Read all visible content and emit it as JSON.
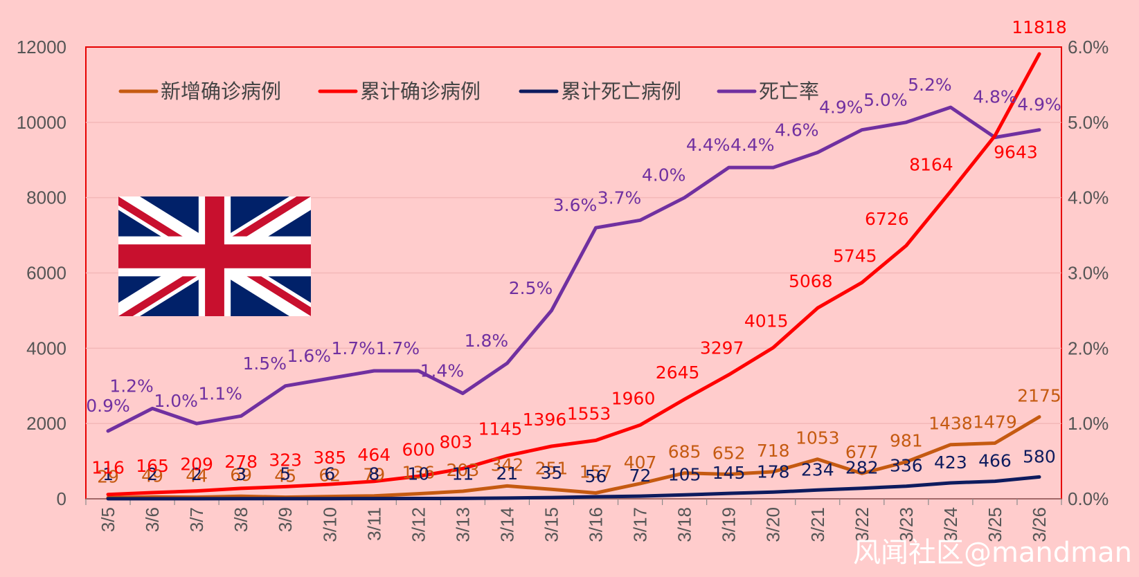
{
  "chart_data": {
    "type": "line",
    "categories": [
      "3/5",
      "3/6",
      "3/7",
      "3/8",
      "3/9",
      "3/10",
      "3/11",
      "3/12",
      "3/13",
      "3/14",
      "3/15",
      "3/16",
      "3/17",
      "3/18",
      "3/19",
      "3/20",
      "3/21",
      "3/22",
      "3/23",
      "3/24",
      "3/25",
      "3/26"
    ],
    "y_left": {
      "ylim": [
        0,
        12000
      ],
      "ticks": [
        "0",
        "2000",
        "4000",
        "6000",
        "8000",
        "10000",
        "12000"
      ]
    },
    "y_right": {
      "ylim": [
        0,
        6
      ],
      "ticks": [
        "0.0%",
        "1.0%",
        "2.0%",
        "3.0%",
        "4.0%",
        "5.0%",
        "6.0%"
      ]
    },
    "series": [
      {
        "name": "新增确诊病例",
        "axis": "left",
        "color": "#c55a11",
        "values": [
          29,
          49,
          44,
          69,
          45,
          62,
          79,
          136,
          203,
          342,
          251,
          157,
          407,
          685,
          652,
          718,
          1053,
          677,
          981,
          1438,
          1479,
          2175
        ]
      },
      {
        "name": "累计确诊病例",
        "axis": "left",
        "color": "#ff0000",
        "values": [
          116,
          165,
          209,
          278,
          323,
          385,
          464,
          600,
          803,
          1145,
          1396,
          1553,
          1960,
          2645,
          3297,
          4015,
          5068,
          5745,
          6726,
          8164,
          9643,
          11818
        ]
      },
      {
        "name": "累计死亡病例",
        "axis": "left",
        "color": "#0d1b5e",
        "values": [
          1,
          2,
          2,
          3,
          5,
          6,
          8,
          10,
          11,
          21,
          35,
          56,
          72,
          105,
          145,
          178,
          234,
          282,
          336,
          423,
          466,
          580
        ]
      },
      {
        "name": "死亡率",
        "axis": "right",
        "color": "#7030a0",
        "values": [
          0.9,
          1.2,
          1.0,
          1.1,
          1.5,
          1.6,
          1.7,
          1.7,
          1.4,
          1.8,
          2.5,
          3.6,
          3.7,
          4.0,
          4.4,
          4.4,
          4.6,
          4.9,
          5.0,
          5.2,
          4.8,
          4.9
        ],
        "labels": [
          "0.9%",
          "1.2%",
          "1.0%",
          "1.1%",
          "1.5%",
          "1.6%",
          "1.7%",
          "1.7%",
          "1.4%",
          "1.8%",
          "2.5%",
          "3.6%",
          "3.7%",
          "4.0%",
          "4.4%",
          "4.4%",
          "4.6%",
          "4.9%",
          "5.0%",
          "5.2%",
          "4.8%",
          "4.9%"
        ]
      }
    ],
    "legend_position": "top",
    "grid": true
  },
  "watermark": "风闻社区@mandman",
  "flag": "uk-flag"
}
